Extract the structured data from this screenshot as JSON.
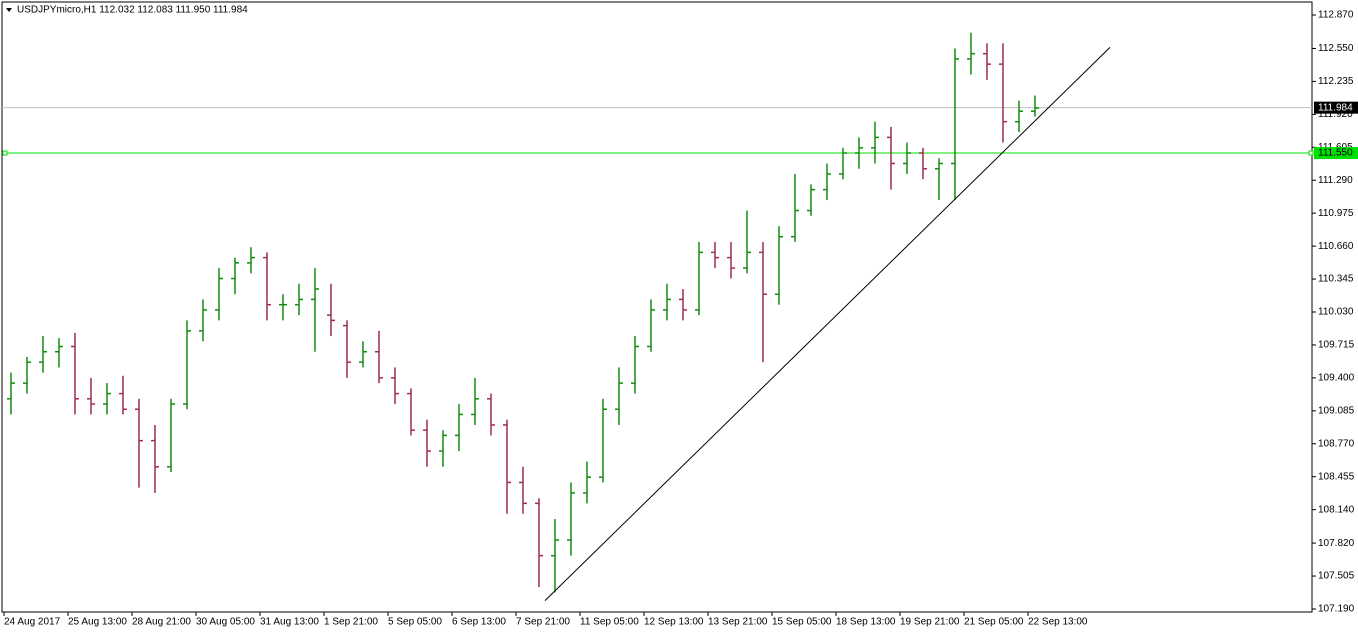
{
  "chart_data": {
    "type": "ohlc",
    "title": "USDJPYmicro,H1  112.032 112.083 111.950 111.984",
    "up_color": "#128a12",
    "down_color": "#9c2e48",
    "ylim": [
      107.19,
      112.87
    ],
    "yticks": [
      {
        "value": 112.87,
        "label": "112.870"
      },
      {
        "value": 112.55,
        "label": "112.550"
      },
      112.235,
      {
        "value": 111.92,
        "label": "111.920"
      },
      111.605,
      {
        "value": 111.29,
        "label": "111.290"
      },
      {
        "value": 110.975,
        "label": "110.975"
      },
      {
        "value": 110.66,
        "label": "110.660"
      },
      110.345,
      {
        "value": 110.03,
        "label": "110.030"
      },
      109.715,
      {
        "value": 109.4,
        "label": "109.400"
      },
      109.085,
      {
        "value": 108.77,
        "label": "108.770"
      },
      108.455,
      {
        "value": 108.14,
        "label": "108.140"
      },
      {
        "value": 107.82,
        "label": "107.820"
      },
      107.505,
      {
        "value": 107.19,
        "label": "107.190"
      }
    ],
    "x_labels": [
      "24 Aug 2017",
      "25 Aug 13:00",
      "28 Aug 21:00",
      "30 Aug 05:00",
      "31 Aug 13:00",
      "1 Sep 21:00",
      "5 Sep 05:00",
      "6 Sep 13:00",
      "7 Sep 21:00",
      "11 Sep 05:00",
      "12 Sep 13:00",
      "13 Sep 21:00",
      "15 Sep 05:00",
      "18 Sep 13:00",
      "19 Sep 21:00",
      "21 Sep 05:00",
      "22 Sep 13:00"
    ],
    "price_line": 111.984,
    "level_line": {
      "value": 111.55,
      "label": "111.550",
      "color": "#00e000"
    },
    "trendline": [
      107.27,
      112.56
    ],
    "open": [
      109.2,
      109.35,
      109.55,
      109.65,
      109.7,
      109.2,
      109.15,
      109.25,
      109.1,
      108.8,
      108.55,
      109.15,
      109.85,
      110.05,
      110.35,
      110.5,
      110.55,
      110.1,
      110.1,
      110.15,
      110.0,
      109.9,
      109.55,
      109.65,
      109.4,
      109.25,
      108.9,
      108.7,
      108.85,
      109.05,
      109.2,
      108.95,
      108.4,
      108.2,
      107.7,
      107.85,
      108.3,
      108.45,
      109.1,
      109.35,
      109.7,
      110.05,
      110.15,
      110.05,
      110.6,
      110.55,
      110.45,
      110.6,
      110.2,
      110.75,
      111.0,
      111.2,
      111.35,
      111.55,
      111.6,
      111.7,
      111.45,
      111.55,
      111.4,
      111.45,
      112.45,
      112.5,
      112.4,
      111.85,
      111.95
    ],
    "high": [
      109.45,
      109.6,
      109.8,
      109.78,
      109.83,
      109.4,
      109.35,
      109.42,
      109.2,
      108.95,
      109.2,
      109.95,
      110.15,
      110.45,
      110.55,
      110.65,
      110.6,
      110.2,
      110.3,
      110.45,
      110.3,
      109.95,
      109.75,
      109.85,
      109.5,
      109.3,
      109.0,
      108.9,
      109.15,
      109.4,
      109.25,
      109.0,
      108.55,
      108.25,
      108.05,
      108.4,
      108.6,
      109.2,
      109.5,
      109.8,
      110.15,
      110.3,
      110.25,
      110.7,
      110.7,
      110.7,
      111.0,
      110.7,
      110.85,
      111.35,
      111.25,
      111.45,
      111.6,
      111.7,
      111.85,
      111.8,
      111.65,
      111.6,
      111.5,
      112.55,
      112.7,
      112.6,
      112.6,
      112.05,
      112.1
    ],
    "low": [
      109.05,
      109.25,
      109.45,
      109.5,
      109.05,
      109.05,
      109.05,
      109.05,
      108.35,
      108.3,
      108.5,
      109.1,
      109.75,
      109.95,
      110.2,
      110.4,
      109.95,
      109.95,
      110.0,
      109.65,
      109.8,
      109.4,
      109.5,
      109.35,
      109.15,
      108.85,
      108.55,
      108.55,
      108.7,
      108.95,
      108.85,
      108.1,
      108.1,
      107.4,
      107.35,
      107.7,
      108.2,
      108.4,
      108.95,
      109.25,
      109.65,
      109.95,
      109.95,
      110.0,
      110.45,
      110.35,
      110.4,
      109.55,
      110.1,
      110.7,
      110.95,
      111.1,
      111.3,
      111.4,
      111.45,
      111.2,
      111.35,
      111.3,
      111.1,
      111.1,
      112.3,
      112.25,
      111.65,
      111.75,
      111.9
    ],
    "close": [
      109.35,
      109.55,
      109.65,
      109.7,
      109.2,
      109.15,
      109.25,
      109.1,
      108.8,
      108.55,
      109.15,
      109.85,
      110.05,
      110.35,
      110.5,
      110.55,
      110.1,
      110.1,
      110.15,
      110.25,
      109.95,
      109.55,
      109.65,
      109.4,
      109.25,
      108.9,
      108.7,
      108.85,
      109.05,
      109.2,
      108.95,
      108.4,
      108.2,
      107.7,
      107.85,
      108.3,
      108.45,
      109.1,
      109.35,
      109.7,
      110.05,
      110.15,
      110.05,
      110.6,
      110.55,
      110.45,
      110.6,
      110.2,
      110.75,
      111.0,
      111.2,
      111.35,
      111.55,
      111.6,
      111.7,
      111.45,
      111.55,
      111.4,
      111.45,
      112.45,
      112.5,
      112.4,
      111.85,
      111.95,
      111.98
    ]
  }
}
